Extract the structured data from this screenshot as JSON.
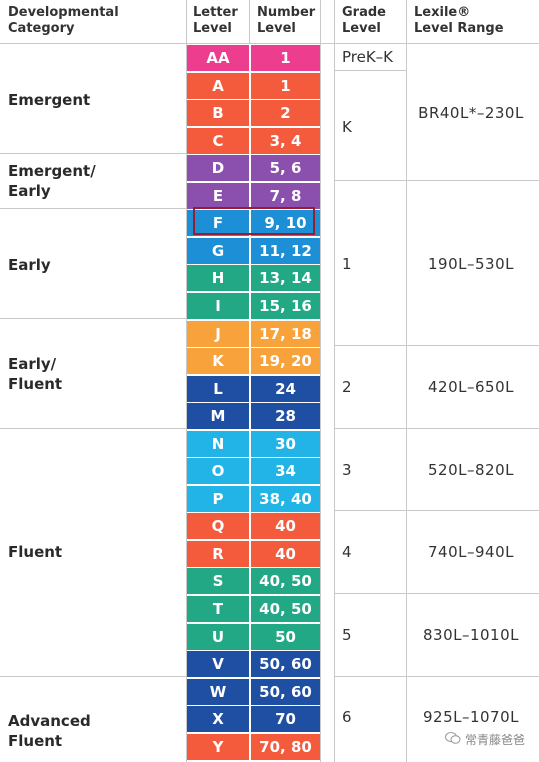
{
  "headers": {
    "category": [
      "Developmental",
      "Category"
    ],
    "letter": [
      "Letter",
      "Level"
    ],
    "number": [
      "Number",
      "Level"
    ],
    "grade": [
      "Grade",
      "Level"
    ],
    "lexile": [
      "Lexile®",
      "Level Range"
    ]
  },
  "categories": [
    {
      "lines": [
        "Emergent"
      ]
    },
    {
      "lines": [
        "Emergent/",
        "Early"
      ]
    },
    {
      "lines": [
        "Early"
      ]
    },
    {
      "lines": [
        "Early/",
        "Fluent"
      ]
    },
    {
      "lines": [
        "Fluent"
      ]
    },
    {
      "lines": [
        "Advanced",
        "Fluent"
      ]
    }
  ],
  "levels": [
    {
      "letter": "AA",
      "number": "1",
      "color": "#ec3d8f"
    },
    {
      "letter": "A",
      "number": "1",
      "color": "#f45a3c"
    },
    {
      "letter": "B",
      "number": "2",
      "color": "#f45a3c"
    },
    {
      "letter": "C",
      "number": "3, 4",
      "color": "#f45a3c"
    },
    {
      "letter": "D",
      "number": "5, 6",
      "color": "#8b4fad"
    },
    {
      "letter": "E",
      "number": "7, 8",
      "color": "#8b4fad"
    },
    {
      "letter": "F",
      "number": "9, 10",
      "color": "#1d8fd6"
    },
    {
      "letter": "G",
      "number": "11, 12",
      "color": "#1d8fd6"
    },
    {
      "letter": "H",
      "number": "13, 14",
      "color": "#22a885"
    },
    {
      "letter": "I",
      "number": "15, 16",
      "color": "#22a885"
    },
    {
      "letter": "J",
      "number": "17, 18",
      "color": "#f7a23a"
    },
    {
      "letter": "K",
      "number": "19, 20",
      "color": "#f7a23a"
    },
    {
      "letter": "L",
      "number": "24",
      "color": "#1e4fa3"
    },
    {
      "letter": "M",
      "number": "28",
      "color": "#1e4fa3"
    },
    {
      "letter": "N",
      "number": "30",
      "color": "#22b4e6"
    },
    {
      "letter": "O",
      "number": "34",
      "color": "#22b4e6"
    },
    {
      "letter": "P",
      "number": "38, 40",
      "color": "#22b4e6"
    },
    {
      "letter": "Q",
      "number": "40",
      "color": "#f45a3c"
    },
    {
      "letter": "R",
      "number": "40",
      "color": "#f45a3c"
    },
    {
      "letter": "S",
      "number": "40, 50",
      "color": "#22a885"
    },
    {
      "letter": "T",
      "number": "40, 50",
      "color": "#22a885"
    },
    {
      "letter": "U",
      "number": "50",
      "color": "#22a885"
    },
    {
      "letter": "V",
      "number": "50, 60",
      "color": "#1e4fa3"
    },
    {
      "letter": "W",
      "number": "50, 60",
      "color": "#1e4fa3"
    },
    {
      "letter": "X",
      "number": "70",
      "color": "#1e4fa3"
    },
    {
      "letter": "Y",
      "number": "70, 80",
      "color": "#f45a3c"
    }
  ],
  "grades": [
    "PreK–K",
    "K",
    "1",
    "2",
    "3",
    "4",
    "5",
    "6"
  ],
  "lexile_ranges": [
    "BR40L*–230L",
    "190L–530L",
    "420L–650L",
    "520L–820L",
    "740L–940L",
    "830L–1010L",
    "925L–1070L"
  ],
  "watermark": "常青藤爸爸"
}
